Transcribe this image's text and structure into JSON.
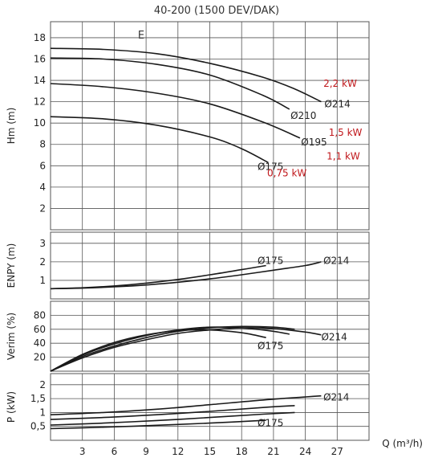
{
  "title": "40-200 (1500 DEV/DAK)",
  "marker": "E",
  "x_axis_label": "Q (m³/h)",
  "x_ticks": [
    "3",
    "6",
    "9",
    "12",
    "15",
    "18",
    "21",
    "24",
    "27"
  ],
  "accent_color": "#c0171b",
  "chart_data": [
    {
      "type": "line",
      "ylabel": "Hm (m)",
      "xlim": [
        0,
        30
      ],
      "ylim": [
        0,
        19.5
      ],
      "yticks": [
        "2",
        "4",
        "6",
        "8",
        "10",
        "12",
        "14",
        "16",
        "18"
      ],
      "grid": true,
      "series": [
        {
          "name": "Ø214",
          "x": [
            0,
            5,
            10,
            15,
            20,
            23,
            25.5
          ],
          "y": [
            17.0,
            16.9,
            16.5,
            15.6,
            14.3,
            13.2,
            12.0
          ]
        },
        {
          "name": "Ø210",
          "x": [
            0,
            5,
            10,
            15,
            20,
            22.5
          ],
          "y": [
            16.1,
            16.0,
            15.5,
            14.5,
            12.6,
            11.3
          ]
        },
        {
          "name": "Ø195",
          "x": [
            0,
            5,
            10,
            15,
            20,
            23.5
          ],
          "y": [
            13.7,
            13.4,
            12.8,
            11.8,
            10.1,
            8.6
          ]
        },
        {
          "name": "Ø175",
          "x": [
            0,
            5,
            10,
            15,
            18,
            20.5
          ],
          "y": [
            10.6,
            10.4,
            9.8,
            8.7,
            7.6,
            6.3
          ]
        }
      ],
      "power_labels": [
        {
          "text": "2,2 kW",
          "x": 25.7,
          "y": 13.7
        },
        {
          "text": "1,5 kW",
          "x": 26.2,
          "y": 9.1
        },
        {
          "text": "1,1 kW",
          "x": 26.0,
          "y": 6.9
        },
        {
          "text": "0,75 kW",
          "x": 20.4,
          "y": 5.3
        }
      ]
    },
    {
      "type": "line",
      "ylabel": "ENPY (m)",
      "xlim": [
        0,
        30
      ],
      "ylim": [
        0,
        3.6
      ],
      "yticks": [
        "1",
        "2",
        "3"
      ],
      "grid": true,
      "series": [
        {
          "name": "Ø175",
          "x": [
            0,
            3,
            6,
            9,
            12,
            15,
            18,
            20.3
          ],
          "y": [
            0.55,
            0.6,
            0.7,
            0.85,
            1.05,
            1.3,
            1.58,
            1.8
          ]
        },
        {
          "name": "Ø214",
          "x": [
            0,
            3,
            6,
            9,
            12,
            15,
            18,
            21,
            24,
            25.5
          ],
          "y": [
            0.55,
            0.58,
            0.65,
            0.75,
            0.9,
            1.08,
            1.3,
            1.55,
            1.8,
            2.0
          ]
        }
      ]
    },
    {
      "type": "line",
      "ylabel": "Verim (%)",
      "xlim": [
        0,
        30
      ],
      "ylim": [
        0,
        100
      ],
      "yticks": [
        "20",
        "40",
        "60",
        "80"
      ],
      "grid": true,
      "series": [
        {
          "name": "Ø214",
          "x": [
            0,
            3,
            6,
            9,
            12,
            15,
            18,
            21,
            24,
            25.5
          ],
          "y": [
            0,
            19,
            34,
            45,
            54,
            59,
            62,
            61,
            56,
            52
          ]
        },
        {
          "name": "",
          "x": [
            0,
            3,
            6,
            9,
            12,
            15,
            18,
            21,
            23
          ],
          "y": [
            0,
            21,
            36,
            48,
            57,
            62,
            64,
            63,
            60
          ]
        },
        {
          "name": "",
          "x": [
            0,
            3,
            6,
            9,
            12,
            15,
            18,
            21,
            22.5
          ],
          "y": [
            0,
            23,
            39,
            51,
            59,
            63,
            62,
            57,
            53
          ]
        },
        {
          "name": "Ø175",
          "x": [
            0,
            3,
            6,
            9,
            12,
            15,
            18,
            20.3
          ],
          "y": [
            0,
            24,
            41,
            52,
            58,
            59,
            55,
            48
          ]
        }
      ]
    },
    {
      "type": "line",
      "ylabel": "P (kW)",
      "xlim": [
        0,
        30
      ],
      "ylim": [
        0,
        2.4
      ],
      "yticks": [
        "0,5",
        "1",
        "1,5",
        "2"
      ],
      "grid": true,
      "series": [
        {
          "name": "Ø214",
          "x": [
            0,
            5,
            10,
            15,
            20,
            25.5
          ],
          "y": [
            0.92,
            1.0,
            1.12,
            1.28,
            1.45,
            1.6
          ]
        },
        {
          "name": "",
          "x": [
            0,
            5,
            10,
            15,
            20,
            23
          ],
          "y": [
            0.75,
            0.82,
            0.92,
            1.04,
            1.18,
            1.25
          ]
        },
        {
          "name": "",
          "x": [
            0,
            5,
            10,
            15,
            20,
            23
          ],
          "y": [
            0.55,
            0.62,
            0.71,
            0.82,
            0.94,
            1.0
          ]
        },
        {
          "name": "Ø175",
          "x": [
            0,
            5,
            10,
            15,
            20.3
          ],
          "y": [
            0.42,
            0.47,
            0.54,
            0.62,
            0.72
          ]
        }
      ]
    }
  ]
}
